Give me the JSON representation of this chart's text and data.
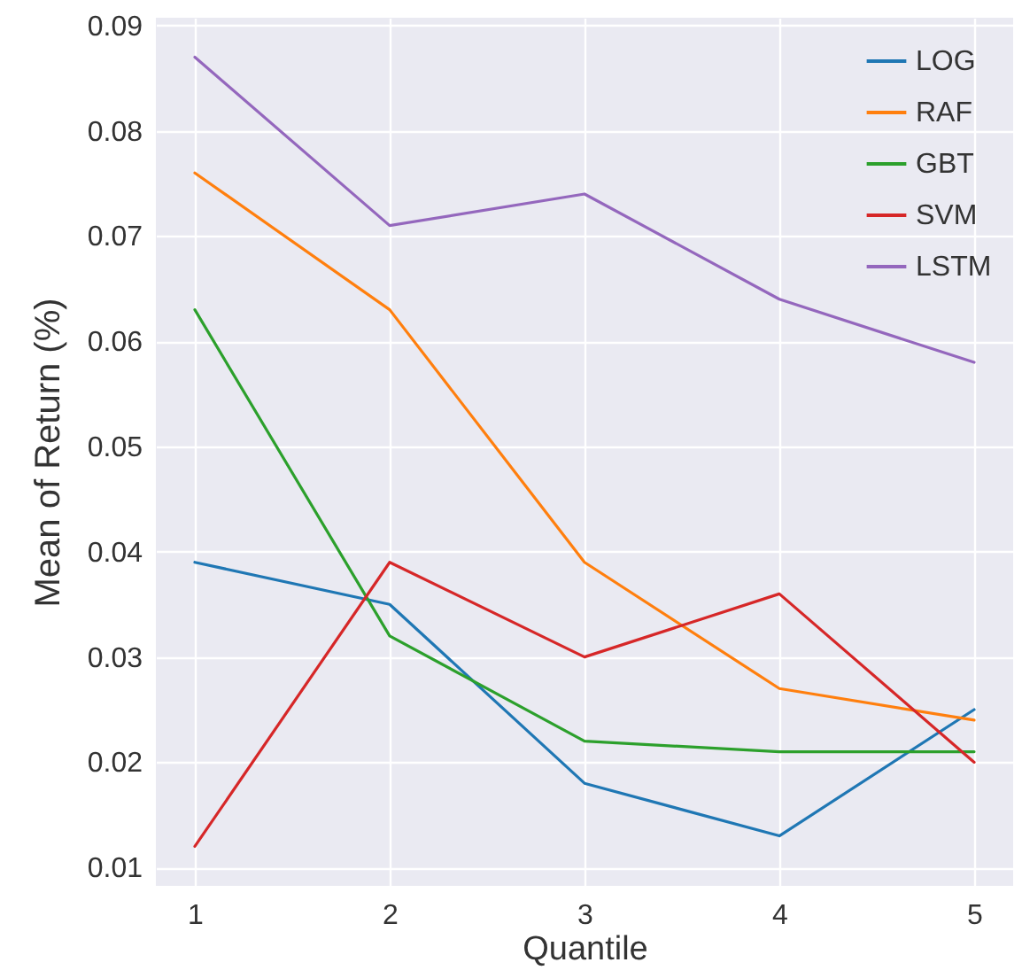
{
  "chart_data": {
    "type": "line",
    "xlabel": "Quantile",
    "ylabel": "Mean of Return (%)",
    "x": [
      1,
      2,
      3,
      4,
      5
    ],
    "series": [
      {
        "name": "LOG",
        "color": "#1f77b4",
        "values": [
          0.039,
          0.035,
          0.018,
          0.013,
          0.025
        ]
      },
      {
        "name": "RAF",
        "color": "#ff7f0e",
        "values": [
          0.076,
          0.063,
          0.039,
          0.027,
          0.024
        ]
      },
      {
        "name": "GBT",
        "color": "#2ca02c",
        "values": [
          0.063,
          0.032,
          0.022,
          0.021,
          0.021
        ]
      },
      {
        "name": "SVM",
        "color": "#d62728",
        "values": [
          0.012,
          0.039,
          0.03,
          0.036,
          0.02
        ]
      },
      {
        "name": "LSTM",
        "color": "#9467bd",
        "values": [
          0.087,
          0.071,
          0.074,
          0.064,
          0.058
        ]
      }
    ],
    "xlim": [
      0.8,
      5.2
    ],
    "xticks": [
      1,
      2,
      3,
      4,
      5
    ],
    "ylim": [
      0.00825,
      0.09075
    ],
    "yticks": [
      0.01,
      0.02,
      0.03,
      0.04,
      0.05,
      0.06,
      0.07,
      0.08,
      0.09
    ],
    "grid": true,
    "legend": "top right",
    "marker": "none",
    "line_style": "solid"
  }
}
